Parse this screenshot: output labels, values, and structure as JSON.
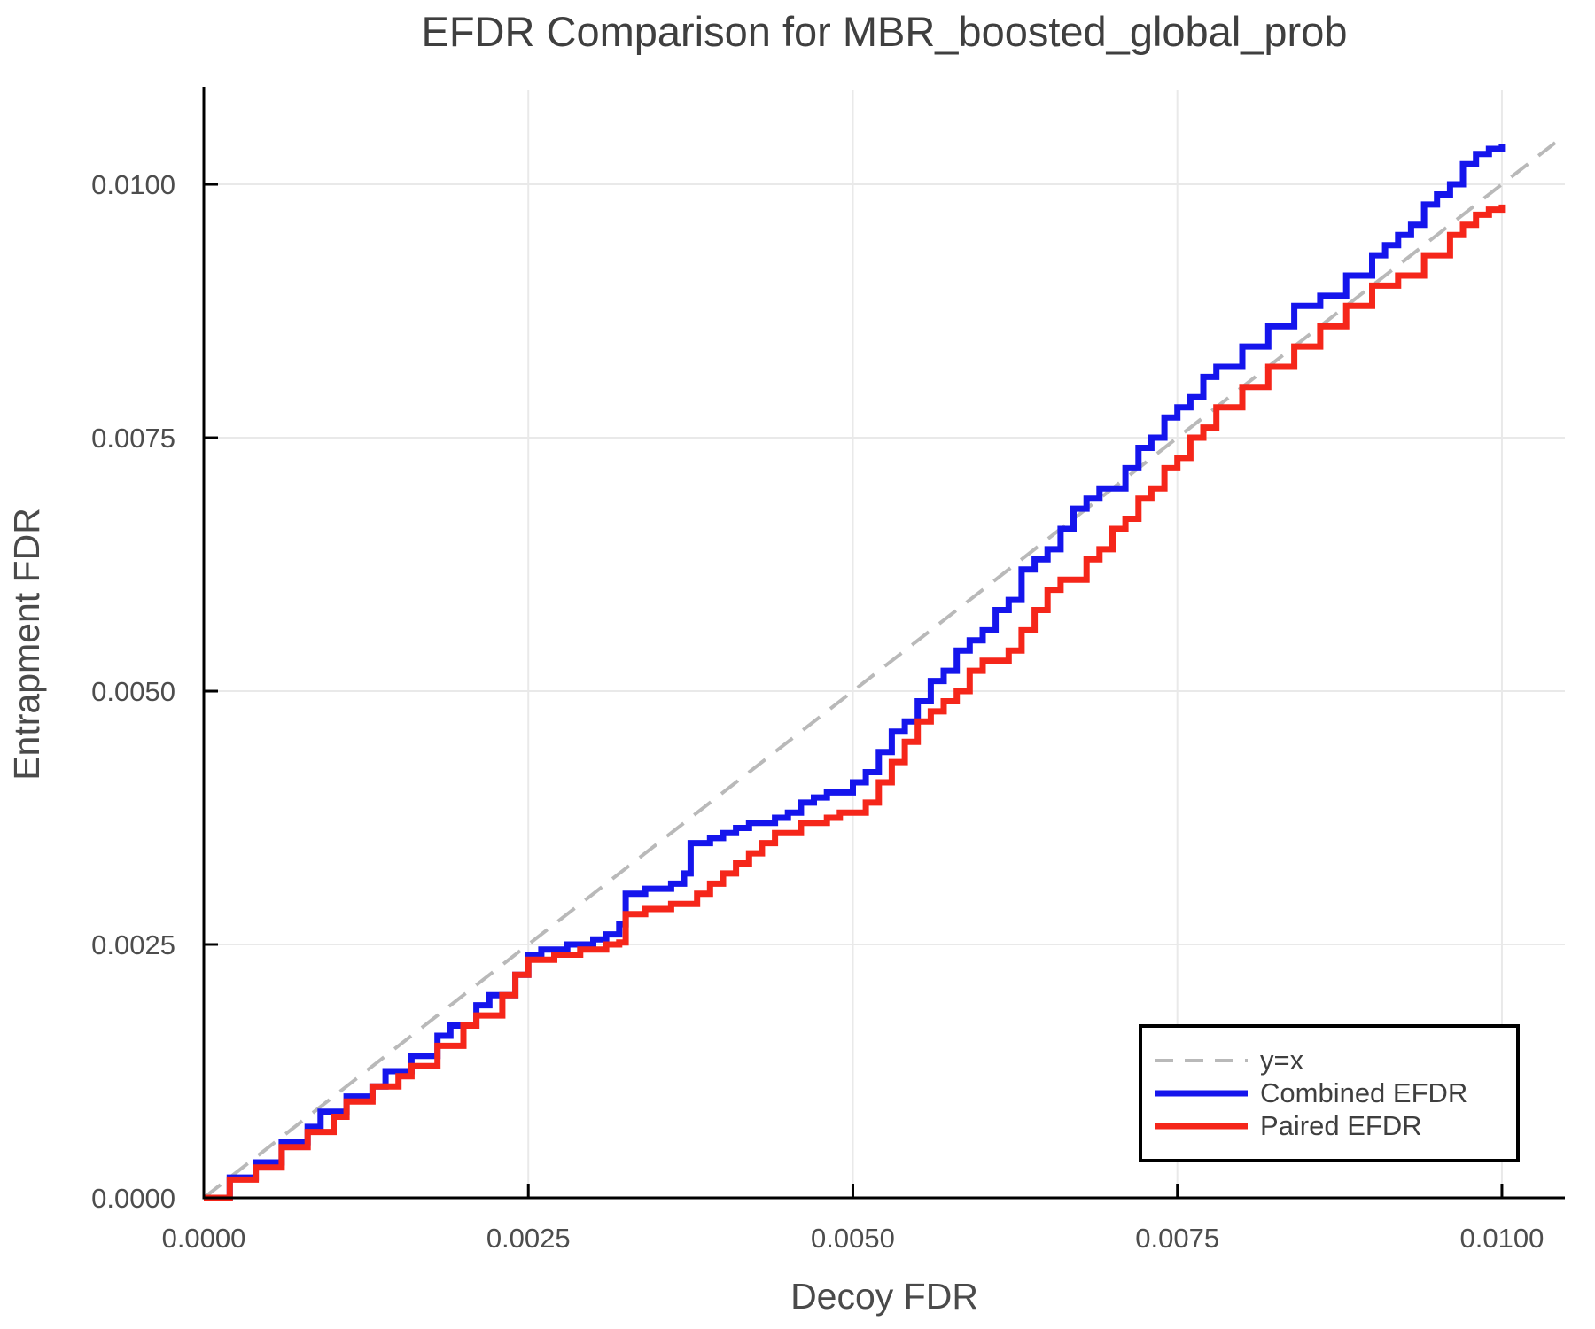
{
  "figure": {
    "background": "#ffffff"
  },
  "chart_data": {
    "type": "line",
    "title": "EFDR Comparison for MBR_boosted_global_prob",
    "xlabel": "Decoy FDR",
    "ylabel": "Entrapment FDR",
    "xlim": [
      0,
      0.010485
    ],
    "ylim": [
      0,
      0.010927
    ],
    "x_ticks": [
      0.0,
      0.0025,
      0.005,
      0.0075,
      0.01
    ],
    "y_ticks": [
      0.0,
      0.0025,
      0.005,
      0.0075,
      0.01
    ],
    "x_tick_labels": [
      "0.0000",
      "0.0025",
      "0.0050",
      "0.0075",
      "0.0100"
    ],
    "y_tick_labels": [
      "0.0000",
      "0.0025",
      "0.0050",
      "0.0075",
      "0.0100"
    ],
    "grid": true,
    "legend_position": "lower right",
    "reference_line": {
      "label": "y=x",
      "style": "dashed",
      "color": "#b9b9b9",
      "from": [
        0,
        0
      ],
      "to": [
        0.010485,
        0.010485
      ]
    },
    "series": [
      {
        "name": "Combined EFDR",
        "color": "#1515ec",
        "step": true,
        "points": [
          [
            0.0,
            0.0
          ],
          [
            0.0002,
            0.0002
          ],
          [
            0.0004,
            0.00035
          ],
          [
            0.0006,
            0.00055
          ],
          [
            0.0008,
            0.0007
          ],
          [
            0.0009,
            0.00085
          ],
          [
            0.0011,
            0.001
          ],
          [
            0.0013,
            0.0011
          ],
          [
            0.0014,
            0.00125
          ],
          [
            0.0016,
            0.0014
          ],
          [
            0.0018,
            0.0016
          ],
          [
            0.0019,
            0.0017
          ],
          [
            0.0021,
            0.0019
          ],
          [
            0.0022,
            0.002
          ],
          [
            0.0024,
            0.0022
          ],
          [
            0.0025,
            0.0024
          ],
          [
            0.0026,
            0.00245
          ],
          [
            0.0028,
            0.0025
          ],
          [
            0.003,
            0.00255
          ],
          [
            0.0031,
            0.0026
          ],
          [
            0.0032,
            0.0027
          ],
          [
            0.00325,
            0.003
          ],
          [
            0.0034,
            0.00305
          ],
          [
            0.0036,
            0.0031
          ],
          [
            0.0037,
            0.0032
          ],
          [
            0.00375,
            0.0035
          ],
          [
            0.0039,
            0.00355
          ],
          [
            0.004,
            0.0036
          ],
          [
            0.0041,
            0.00365
          ],
          [
            0.0042,
            0.0037
          ],
          [
            0.0044,
            0.00375
          ],
          [
            0.0045,
            0.0038
          ],
          [
            0.0046,
            0.0039
          ],
          [
            0.0047,
            0.00395
          ],
          [
            0.0048,
            0.004
          ],
          [
            0.005,
            0.0041
          ],
          [
            0.0051,
            0.0042
          ],
          [
            0.0052,
            0.0044
          ],
          [
            0.0053,
            0.0046
          ],
          [
            0.0054,
            0.0047
          ],
          [
            0.0055,
            0.0049
          ],
          [
            0.0056,
            0.0051
          ],
          [
            0.0057,
            0.0052
          ],
          [
            0.0058,
            0.0054
          ],
          [
            0.0059,
            0.0055
          ],
          [
            0.006,
            0.0056
          ],
          [
            0.0061,
            0.0058
          ],
          [
            0.0062,
            0.0059
          ],
          [
            0.0063,
            0.0062
          ],
          [
            0.0064,
            0.0063
          ],
          [
            0.0065,
            0.0064
          ],
          [
            0.0066,
            0.0066
          ],
          [
            0.0067,
            0.0068
          ],
          [
            0.0068,
            0.0069
          ],
          [
            0.0069,
            0.007
          ],
          [
            0.0071,
            0.0072
          ],
          [
            0.0072,
            0.0074
          ],
          [
            0.0073,
            0.0075
          ],
          [
            0.0074,
            0.0077
          ],
          [
            0.0075,
            0.0078
          ],
          [
            0.0076,
            0.0079
          ],
          [
            0.0077,
            0.0081
          ],
          [
            0.0078,
            0.0082
          ],
          [
            0.008,
            0.0084
          ],
          [
            0.0082,
            0.0086
          ],
          [
            0.0084,
            0.0088
          ],
          [
            0.0086,
            0.0089
          ],
          [
            0.0088,
            0.0091
          ],
          [
            0.009,
            0.0093
          ],
          [
            0.0091,
            0.0094
          ],
          [
            0.0092,
            0.0095
          ],
          [
            0.0093,
            0.0096
          ],
          [
            0.0094,
            0.0098
          ],
          [
            0.0095,
            0.0099
          ],
          [
            0.0096,
            0.01
          ],
          [
            0.0097,
            0.0102
          ],
          [
            0.0098,
            0.0103
          ],
          [
            0.0099,
            0.01035
          ],
          [
            0.01,
            0.0104
          ]
        ]
      },
      {
        "name": "Paired EFDR",
        "color": "#f5261a",
        "step": true,
        "points": [
          [
            0.0,
            0.0
          ],
          [
            0.0002,
            0.00018
          ],
          [
            0.0004,
            0.0003
          ],
          [
            0.0006,
            0.0005
          ],
          [
            0.0008,
            0.00065
          ],
          [
            0.001,
            0.0008
          ],
          [
            0.0011,
            0.00095
          ],
          [
            0.0013,
            0.0011
          ],
          [
            0.0015,
            0.0012
          ],
          [
            0.0016,
            0.0013
          ],
          [
            0.0018,
            0.0015
          ],
          [
            0.002,
            0.0017
          ],
          [
            0.0021,
            0.0018
          ],
          [
            0.0023,
            0.002
          ],
          [
            0.0024,
            0.0022
          ],
          [
            0.0025,
            0.00235
          ],
          [
            0.0027,
            0.0024
          ],
          [
            0.0029,
            0.00245
          ],
          [
            0.0031,
            0.0025
          ],
          [
            0.0032,
            0.00252
          ],
          [
            0.00325,
            0.0028
          ],
          [
            0.0034,
            0.00285
          ],
          [
            0.0036,
            0.0029
          ],
          [
            0.0038,
            0.003
          ],
          [
            0.0039,
            0.0031
          ],
          [
            0.004,
            0.0032
          ],
          [
            0.0041,
            0.0033
          ],
          [
            0.0042,
            0.0034
          ],
          [
            0.0043,
            0.0035
          ],
          [
            0.0044,
            0.0036
          ],
          [
            0.0046,
            0.0037
          ],
          [
            0.0048,
            0.00375
          ],
          [
            0.0049,
            0.0038
          ],
          [
            0.0051,
            0.0039
          ],
          [
            0.0052,
            0.0041
          ],
          [
            0.0053,
            0.0043
          ],
          [
            0.0054,
            0.0045
          ],
          [
            0.0055,
            0.0047
          ],
          [
            0.0056,
            0.0048
          ],
          [
            0.0057,
            0.0049
          ],
          [
            0.0058,
            0.005
          ],
          [
            0.0059,
            0.0052
          ],
          [
            0.006,
            0.0053
          ],
          [
            0.0062,
            0.0054
          ],
          [
            0.0063,
            0.0056
          ],
          [
            0.0064,
            0.0058
          ],
          [
            0.0065,
            0.006
          ],
          [
            0.0066,
            0.0061
          ],
          [
            0.0068,
            0.0063
          ],
          [
            0.0069,
            0.0064
          ],
          [
            0.007,
            0.0066
          ],
          [
            0.0071,
            0.0067
          ],
          [
            0.0072,
            0.0069
          ],
          [
            0.0073,
            0.007
          ],
          [
            0.0074,
            0.0072
          ],
          [
            0.0075,
            0.0073
          ],
          [
            0.0076,
            0.0075
          ],
          [
            0.0077,
            0.0076
          ],
          [
            0.0078,
            0.0078
          ],
          [
            0.008,
            0.008
          ],
          [
            0.0082,
            0.0082
          ],
          [
            0.0084,
            0.0084
          ],
          [
            0.0086,
            0.0086
          ],
          [
            0.0088,
            0.0088
          ],
          [
            0.009,
            0.009
          ],
          [
            0.0092,
            0.0091
          ],
          [
            0.0094,
            0.0093
          ],
          [
            0.0096,
            0.0095
          ],
          [
            0.0097,
            0.0096
          ],
          [
            0.0098,
            0.0097
          ],
          [
            0.0099,
            0.00975
          ],
          [
            0.01,
            0.0098
          ]
        ]
      }
    ],
    "style": {
      "grid_color": "#e9e9e9",
      "spine_color": "#000000",
      "tick_text_color": "#4d4d4d",
      "line_width": 7,
      "reference_dash": "24 15"
    }
  },
  "legend": {
    "items": [
      {
        "label": "y=x"
      },
      {
        "label": "Combined EFDR"
      },
      {
        "label": "Paired EFDR"
      }
    ]
  }
}
